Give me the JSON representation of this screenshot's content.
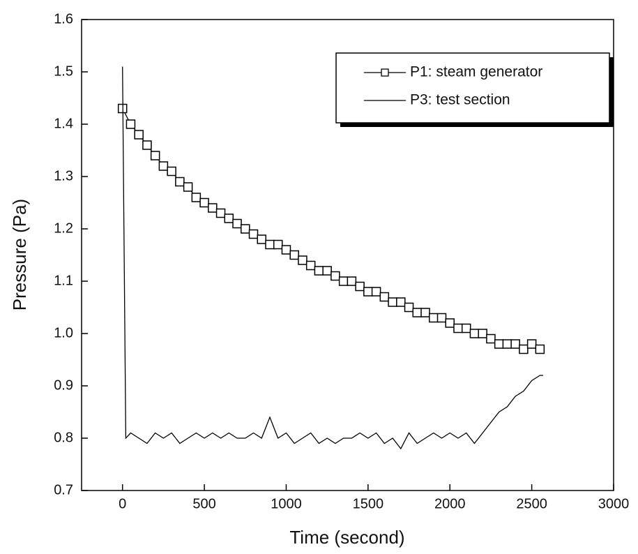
{
  "chart_data": {
    "type": "line",
    "xlabel": "Time (second)",
    "ylabel": "Pressure (Pa)",
    "xlim": [
      -250,
      3000
    ],
    "ylim": [
      0.7,
      1.6
    ],
    "xticks": [
      0,
      500,
      1000,
      1500,
      2000,
      2500,
      3000
    ],
    "yticks": [
      0.7,
      0.8,
      0.9,
      {
        "value": 1.0,
        "label": "1.0"
      },
      1.1,
      1.2,
      1.3,
      1.4,
      1.5,
      1.6
    ],
    "legend": "upper right",
    "series": [
      {
        "name": "P1: steam generator",
        "color": "#000000",
        "marker": "square",
        "x": [
          0,
          50,
          100,
          150,
          200,
          250,
          300,
          350,
          400,
          450,
          500,
          550,
          600,
          650,
          700,
          750,
          800,
          850,
          900,
          950,
          1000,
          1050,
          1100,
          1150,
          1200,
          1250,
          1300,
          1350,
          1400,
          1450,
          1500,
          1550,
          1600,
          1650,
          1700,
          1750,
          1800,
          1850,
          1900,
          1950,
          2000,
          2050,
          2100,
          2150,
          2200,
          2250,
          2300,
          2350,
          2400,
          2450,
          2500,
          2550
        ],
        "values": [
          1.43,
          1.4,
          1.38,
          1.36,
          1.34,
          1.32,
          1.31,
          1.29,
          1.28,
          1.26,
          1.25,
          1.24,
          1.23,
          1.22,
          1.21,
          1.2,
          1.19,
          1.18,
          1.17,
          1.17,
          1.16,
          1.15,
          1.14,
          1.13,
          1.12,
          1.12,
          1.11,
          1.1,
          1.1,
          1.09,
          1.08,
          1.08,
          1.07,
          1.06,
          1.06,
          1.05,
          1.04,
          1.04,
          1.03,
          1.03,
          1.02,
          1.01,
          1.01,
          1.0,
          1.0,
          0.99,
          0.98,
          0.98,
          0.98,
          0.97,
          0.98,
          0.97
        ]
      },
      {
        "name": "P3: test section",
        "color": "#000000",
        "x": [
          0,
          20,
          50,
          100,
          150,
          200,
          250,
          300,
          350,
          400,
          450,
          500,
          550,
          600,
          650,
          700,
          750,
          800,
          850,
          900,
          950,
          1000,
          1050,
          1100,
          1150,
          1200,
          1250,
          1300,
          1350,
          1400,
          1450,
          1500,
          1550,
          1600,
          1650,
          1700,
          1750,
          1800,
          1850,
          1900,
          1950,
          2000,
          2050,
          2100,
          2150,
          2200,
          2250,
          2300,
          2350,
          2400,
          2450,
          2500,
          2550,
          2570
        ],
        "values": [
          1.51,
          0.8,
          0.81,
          0.8,
          0.79,
          0.81,
          0.8,
          0.81,
          0.79,
          0.8,
          0.81,
          0.8,
          0.81,
          0.8,
          0.81,
          0.8,
          0.8,
          0.81,
          0.8,
          0.84,
          0.8,
          0.81,
          0.79,
          0.8,
          0.81,
          0.79,
          0.8,
          0.79,
          0.8,
          0.8,
          0.81,
          0.8,
          0.81,
          0.79,
          0.8,
          0.78,
          0.81,
          0.79,
          0.8,
          0.81,
          0.8,
          0.81,
          0.8,
          0.81,
          0.79,
          0.81,
          0.83,
          0.85,
          0.86,
          0.88,
          0.89,
          0.91,
          0.92,
          0.92
        ]
      }
    ]
  }
}
